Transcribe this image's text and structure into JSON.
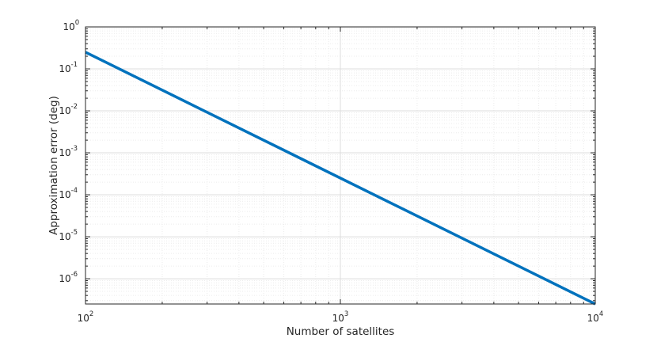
{
  "chart_data": {
    "type": "line",
    "xlabel": "Number of satellites",
    "ylabel": "Approximation error (deg)",
    "x_scale": "log",
    "y_scale": "log",
    "xlim": [
      100,
      10000
    ],
    "ylim": [
      2.5e-07,
      1
    ],
    "grid": true,
    "minor_grid": true,
    "x_ticks": [
      {
        "base": "10",
        "exp": "2"
      },
      {
        "base": "10",
        "exp": "3"
      },
      {
        "base": "10",
        "exp": "4"
      }
    ],
    "y_ticks": [
      {
        "base": "10",
        "exp": "0"
      },
      {
        "base": "10",
        "exp": "-1"
      },
      {
        "base": "10",
        "exp": "-2"
      },
      {
        "base": "10",
        "exp": "-3"
      },
      {
        "base": "10",
        "exp": "-4"
      },
      {
        "base": "10",
        "exp": "-5"
      },
      {
        "base": "10",
        "exp": "-6"
      }
    ],
    "series": [
      {
        "color": "#0072BD",
        "x": [
          100,
          10000
        ],
        "y": [
          0.25,
          2.5e-07
        ]
      }
    ]
  }
}
